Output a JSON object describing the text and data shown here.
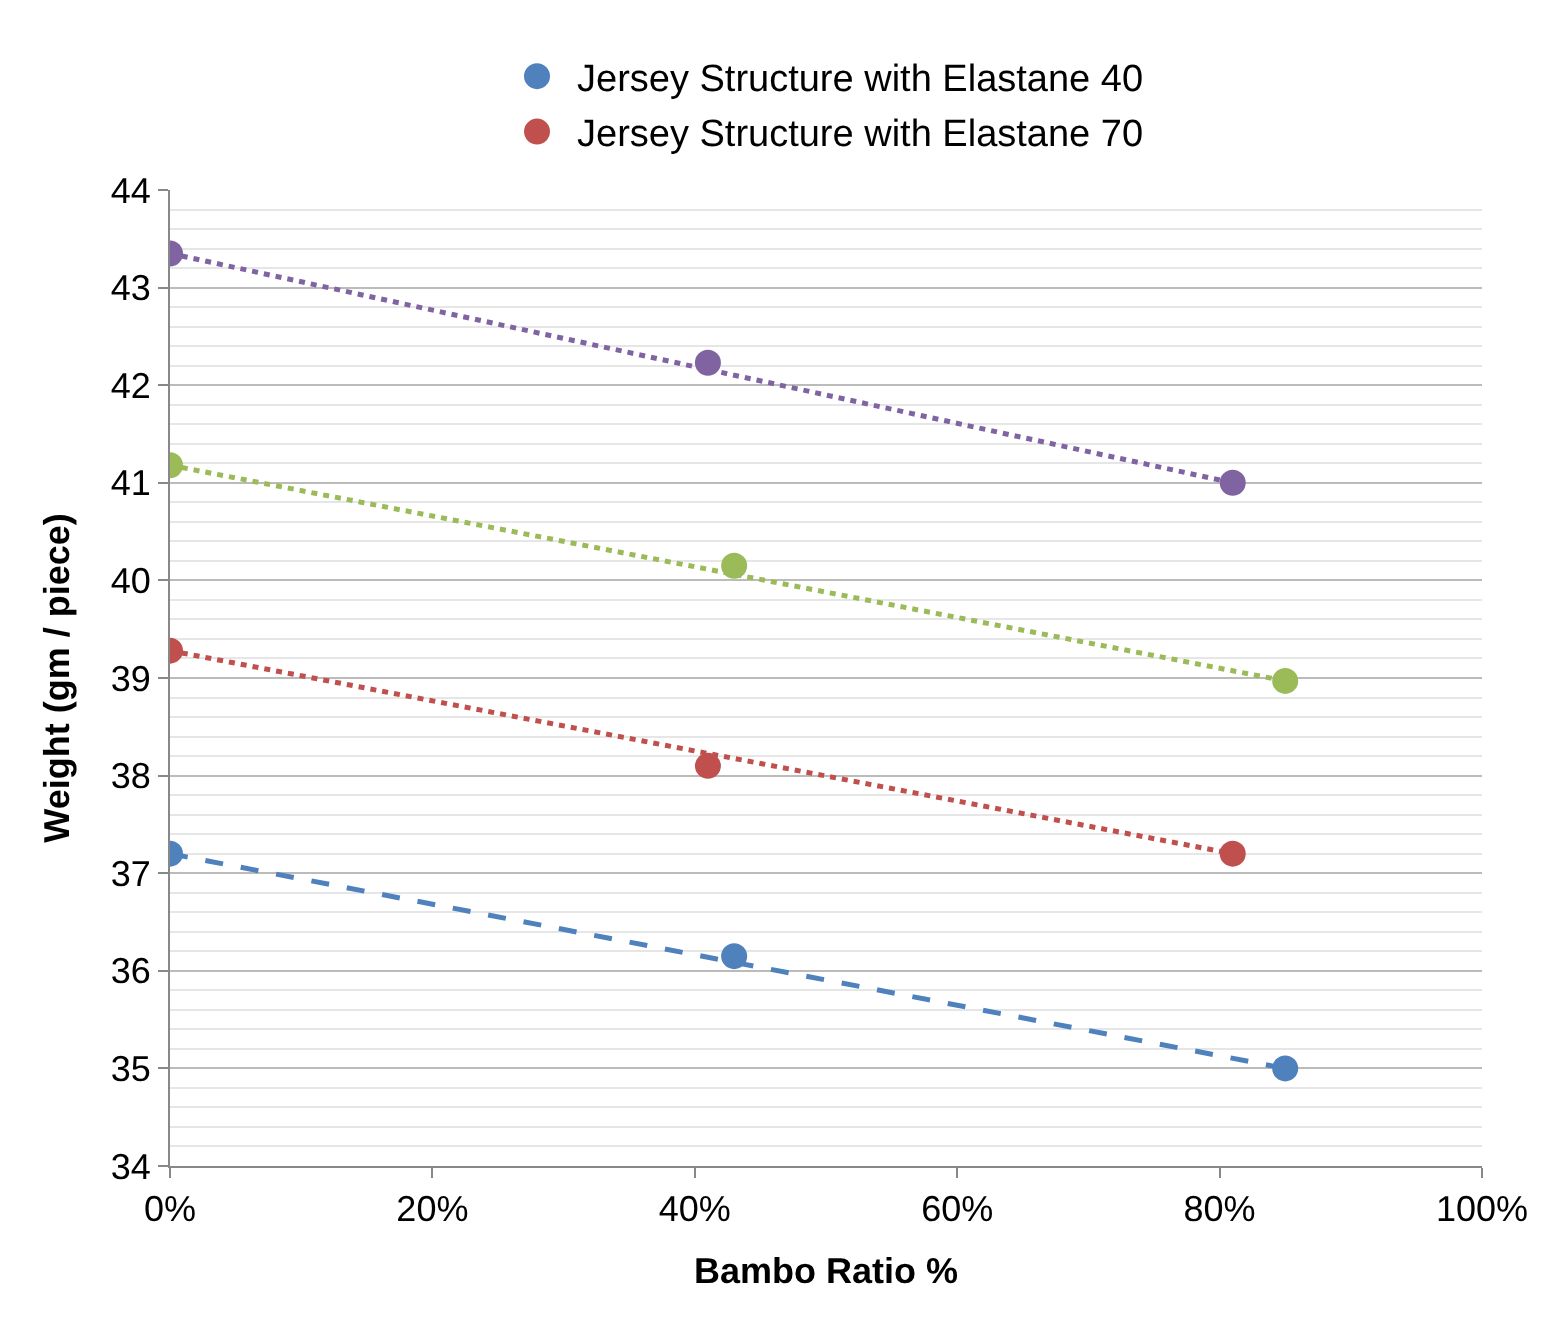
{
  "chart_data": {
    "type": "scatter",
    "xlabel": "Bambo Ratio %",
    "ylabel": "Weight (gm / piece)",
    "xlim": [
      0,
      100
    ],
    "xticks": [
      {
        "value": 0,
        "label": "0%"
      },
      {
        "value": 20,
        "label": "20%"
      },
      {
        "value": 40,
        "label": "40%"
      },
      {
        "value": 60,
        "label": "60%"
      },
      {
        "value": 80,
        "label": "80%"
      },
      {
        "value": 100,
        "label": "100%"
      }
    ],
    "ylim": [
      34,
      44
    ],
    "yticks": [
      34,
      35,
      36,
      37,
      38,
      39,
      40,
      41,
      42,
      43,
      44
    ],
    "grid": "y",
    "legend": "top",
    "marker": "circle",
    "series": [
      {
        "name": "Jersey Structure with Elastane 40",
        "color": "#4f81bd",
        "x": [
          0,
          43,
          85
        ],
        "values": [
          37.2,
          36.15,
          35.0
        ]
      },
      {
        "name": "Jersey Structure with Elastane 70",
        "color": "#c0504d",
        "x": [
          0,
          41,
          81
        ],
        "values": [
          39.28,
          38.1,
          37.2
        ]
      },
      {
        "color": "#9bbb59",
        "x": [
          0,
          43,
          85
        ],
        "values": [
          41.18,
          40.15,
          38.97
        ]
      },
      {
        "color": "#8064a2",
        "x": [
          0,
          41,
          81
        ],
        "values": [
          43.35,
          42.23,
          41.0
        ]
      },
      {
        "type": "line",
        "line_style": "dashed",
        "marker": "none",
        "color": "#4f81bd",
        "x": [
          0,
          85
        ],
        "values": [
          37.2,
          35.0
        ]
      },
      {
        "type": "line",
        "line_style": "dotted",
        "marker": "none",
        "color": "#c0504d",
        "x": [
          0,
          81
        ],
        "values": [
          39.28,
          37.2
        ]
      },
      {
        "type": "line",
        "line_style": "dotted",
        "marker": "none",
        "color": "#9bbb59",
        "x": [
          0,
          85
        ],
        "values": [
          41.18,
          38.97
        ]
      },
      {
        "type": "line",
        "line_style": "dotted",
        "marker": "none",
        "color": "#8064a2",
        "x": [
          0,
          81
        ],
        "values": [
          43.35,
          41.0
        ]
      }
    ]
  }
}
